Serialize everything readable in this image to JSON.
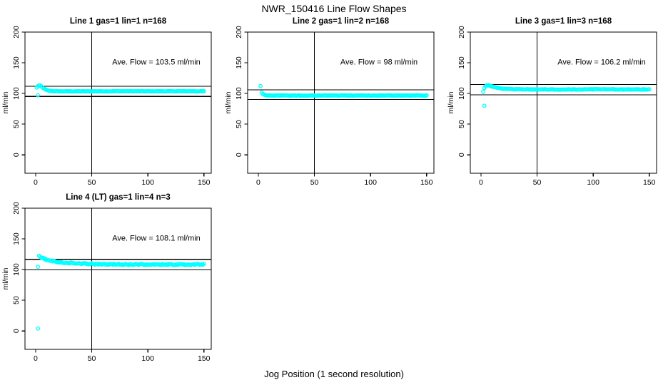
{
  "title": "NWR_150416  Line Flow Shapes",
  "xlabel": "Jog Position (1 second resolution)",
  "colors": {
    "points": "#00FFFF",
    "axis": "#000000",
    "text": "#000000",
    "background": "#FFFFFF"
  },
  "axes": {
    "ylabel": "ml/min",
    "x_ticks": [
      "0",
      "50",
      "100",
      "150"
    ],
    "x_tick_values": [
      0,
      50,
      100,
      150
    ],
    "y_ticks": [
      "0",
      "50",
      "100",
      "150",
      "200"
    ],
    "y_tick_values": [
      0,
      50,
      100,
      150,
      200
    ],
    "x_range": [
      -9.5,
      156.5
    ],
    "y_range": [
      -30,
      200
    ],
    "grid": "off",
    "vline_x": 50
  },
  "chart_data": [
    {
      "type": "scatter",
      "title": "Line 1 gas=1 lin=1 n=168",
      "n_label": "168",
      "ave_flow": 103.5,
      "annotation": "Ave. Flow =  103.5  ml/min",
      "ref_line_upper": 111.8,
      "ref_line_lower": 95.2,
      "vline_x": 50,
      "x_start": 1,
      "x_end": 150,
      "noise": 0.35,
      "curve_keypoints": [
        [
          1,
          109.5
        ],
        [
          2,
          112
        ],
        [
          3,
          113
        ],
        [
          4,
          112.8
        ],
        [
          5,
          111.5
        ],
        [
          6,
          110
        ],
        [
          7,
          108.5
        ],
        [
          8,
          107.2
        ],
        [
          9,
          106.2
        ],
        [
          10,
          105.4
        ],
        [
          12,
          104.4
        ],
        [
          14,
          103.9
        ],
        [
          16,
          103.7
        ],
        [
          20,
          103.5
        ],
        [
          30,
          103.5
        ],
        [
          50,
          103.5
        ],
        [
          80,
          103.6
        ],
        [
          110,
          103.5
        ],
        [
          130,
          103.6
        ],
        [
          150,
          103.5
        ]
      ],
      "outliers": [
        [
          2,
          97
        ]
      ]
    },
    {
      "type": "scatter",
      "title": "Line 2 gas=1 lin=2 n=168",
      "n_label": "168",
      "ave_flow": 98,
      "annotation": "Ave. Flow =  98  ml/min",
      "ref_line_upper": 105.8,
      "ref_line_lower": 90.2,
      "vline_x": 50,
      "x_start": 3,
      "x_end": 150,
      "noise": 0.35,
      "curve_keypoints": [
        [
          3,
          101.5
        ],
        [
          4,
          99.5
        ],
        [
          5,
          98.2
        ],
        [
          6,
          97.4
        ],
        [
          8,
          96.9
        ],
        [
          10,
          96.7
        ],
        [
          14,
          96.6
        ],
        [
          20,
          96.6
        ],
        [
          40,
          96.6
        ],
        [
          70,
          96.7
        ],
        [
          100,
          96.6
        ],
        [
          130,
          96.6
        ],
        [
          150,
          96.6
        ]
      ],
      "outliers": [
        [
          2,
          112
        ]
      ]
    },
    {
      "type": "scatter",
      "title": "Line 3 gas=1 lin=3 n=168",
      "n_label": "168",
      "ave_flow": 106.2,
      "annotation": "Ave. Flow =  106.2  ml/min",
      "ref_line_upper": 114.7,
      "ref_line_lower": 97.7,
      "vline_x": 50,
      "x_start": 2,
      "x_end": 150,
      "noise": 0.45,
      "curve_keypoints": [
        [
          2,
          103
        ],
        [
          3,
          108.5
        ],
        [
          4,
          111.5
        ],
        [
          5,
          112.8
        ],
        [
          6,
          113.2
        ],
        [
          7,
          113
        ],
        [
          8,
          112.5
        ],
        [
          10,
          111.3
        ],
        [
          12,
          110.2
        ],
        [
          15,
          109
        ],
        [
          18,
          108.2
        ],
        [
          22,
          107.5
        ],
        [
          28,
          107
        ],
        [
          35,
          106.8
        ],
        [
          50,
          106.6
        ],
        [
          80,
          106.6
        ],
        [
          110,
          106.7
        ],
        [
          150,
          106.5
        ]
      ],
      "outliers": [
        [
          3,
          80
        ]
      ]
    },
    {
      "type": "scatter",
      "title": "Line 4 (LT) gas=1 lin=4 n=3",
      "n_label": "3",
      "ave_flow": 108.1,
      "annotation": "Ave. Flow =  108.1  ml/min",
      "ref_line_upper": 116.7,
      "ref_line_lower": 99.4,
      "vline_x": 50,
      "x_start": 3,
      "x_end": 150,
      "noise": 1.0,
      "curve_keypoints": [
        [
          3,
          121.5
        ],
        [
          4,
          120.5
        ],
        [
          6,
          118.8
        ],
        [
          8,
          117.3
        ],
        [
          10,
          116.2
        ],
        [
          13,
          114.8
        ],
        [
          16,
          113.7
        ],
        [
          20,
          112.6
        ],
        [
          25,
          111.5
        ],
        [
          30,
          110.8
        ],
        [
          38,
          110
        ],
        [
          46,
          109.4
        ],
        [
          55,
          108.9
        ],
        [
          65,
          108.5
        ],
        [
          80,
          108.2
        ],
        [
          95,
          108.2
        ],
        [
          110,
          108.3
        ],
        [
          125,
          108.1
        ],
        [
          138,
          108.2
        ],
        [
          150,
          108.7
        ]
      ],
      "outliers": [
        [
          2,
          4
        ],
        [
          2,
          104.5
        ]
      ]
    }
  ]
}
